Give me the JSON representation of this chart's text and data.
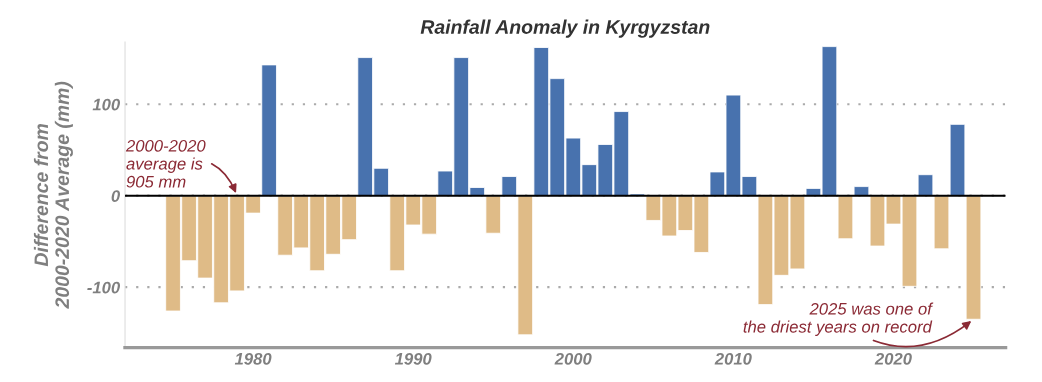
{
  "chart_data": {
    "type": "bar",
    "title": "Rainfall Anomaly in Kyrgyzstan",
    "ylabel": "Difference from\n2000-2020 Average (mm)",
    "x": [
      1975,
      1976,
      1977,
      1978,
      1979,
      1980,
      1981,
      1982,
      1983,
      1984,
      1985,
      1986,
      1987,
      1988,
      1989,
      1990,
      1991,
      1992,
      1993,
      1994,
      1995,
      1996,
      1997,
      1998,
      1999,
      2000,
      2001,
      2002,
      2003,
      2004,
      2005,
      2006,
      2007,
      2008,
      2009,
      2010,
      2011,
      2012,
      2013,
      2014,
      2015,
      2016,
      2017,
      2018,
      2019,
      2020,
      2021,
      2022,
      2023,
      2024,
      2025
    ],
    "values": [
      -126,
      -71,
      -90,
      -117,
      -104,
      -19,
      143,
      -65,
      -57,
      -82,
      -64,
      -48,
      151,
      30,
      -82,
      -32,
      -42,
      27,
      151,
      9,
      -41,
      21,
      -152,
      162,
      128,
      63,
      34,
      56,
      92,
      2,
      -27,
      -44,
      -38,
      -62,
      26,
      110,
      21,
      -119,
      -87,
      -80,
      8,
      163,
      -47,
      10,
      -55,
      -31,
      -99,
      23,
      -58,
      78,
      -135
    ],
    "colors": [
      "#dfbb87",
      "#dfbb87",
      "#dfbb87",
      "#dfbb87",
      "#dfbb87",
      "#dfbb87",
      "#4872ae",
      "#dfbb87",
      "#dfbb87",
      "#dfbb87",
      "#dfbb87",
      "#dfbb87",
      "#4872ae",
      "#4872ae",
      "#dfbb87",
      "#dfbb87",
      "#dfbb87",
      "#4872ae",
      "#4872ae",
      "#4872ae",
      "#dfbb87",
      "#4872ae",
      "#dfbb87",
      "#4872ae",
      "#4872ae",
      "#4872ae",
      "#4872ae",
      "#4872ae",
      "#4872ae",
      "#4872ae",
      "#dfbb87",
      "#dfbb87",
      "#dfbb87",
      "#dfbb87",
      "#4872ae",
      "#4872ae",
      "#4872ae",
      "#dfbb87",
      "#dfbb87",
      "#dfbb87",
      "#4872ae",
      "#4872ae",
      "#dfbb87",
      "#4872ae",
      "#dfbb87",
      "#dfbb87",
      "#dfbb87",
      "#4872ae",
      "#dfbb87",
      "#4872ae",
      "#dfbb87"
    ],
    "xlim": [
      1972,
      2027
    ],
    "xticks": [
      1980,
      1990,
      2000,
      2010,
      2020
    ],
    "ylim": [
      -166,
      168
    ],
    "yticks": [
      -100,
      0,
      100
    ],
    "grid": "y",
    "legend": false,
    "ref_lines": [
      {
        "axis": "y",
        "value": 0,
        "color": "#000000"
      }
    ],
    "annotations": [
      {
        "text": "2000-2020\naverage is\n905 mm",
        "x": 1979,
        "y": 0
      },
      {
        "text": "2025 was one of\nthe driest years on record",
        "x": 2025,
        "y": -135
      }
    ]
  }
}
